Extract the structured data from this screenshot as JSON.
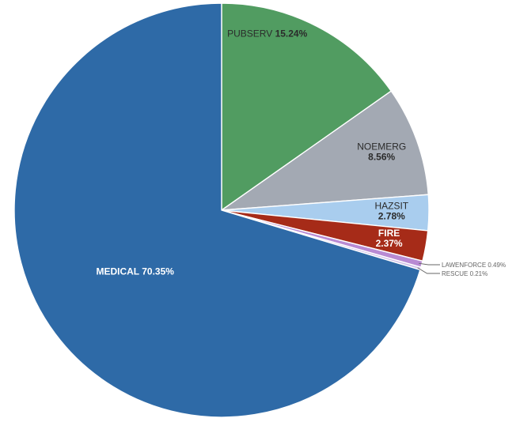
{
  "chart_data": {
    "type": "pie",
    "title": "",
    "start_angle_deg": 0,
    "direction": "clockwise",
    "slices": [
      {
        "label": "PUBSERV",
        "value": 15.24,
        "value_text": "15.24%",
        "color": "#519c61"
      },
      {
        "label": "NOEMERG",
        "value": 8.56,
        "value_text": "8.56%",
        "color": "#a3a9b3"
      },
      {
        "label": "HAZSIT",
        "value": 2.78,
        "value_text": "2.78%",
        "color": "#a9cdee"
      },
      {
        "label": "FIRE",
        "value": 2.37,
        "value_text": "2.37%",
        "color": "#a62b18"
      },
      {
        "label": "LAWENFORCE",
        "value": 0.49,
        "value_text": "0.49%",
        "color": "#b88ad3"
      },
      {
        "label": "RESCUE",
        "value": 0.21,
        "value_text": "0.21%",
        "color": "#d1c0e8"
      },
      {
        "label": "MEDICAL",
        "value": 70.35,
        "value_text": "70.35%",
        "color": "#2e6aa7"
      }
    ],
    "label_colors": {
      "dark": "#2b2b2b",
      "light": "#ffffff",
      "callout": "#666666"
    }
  }
}
